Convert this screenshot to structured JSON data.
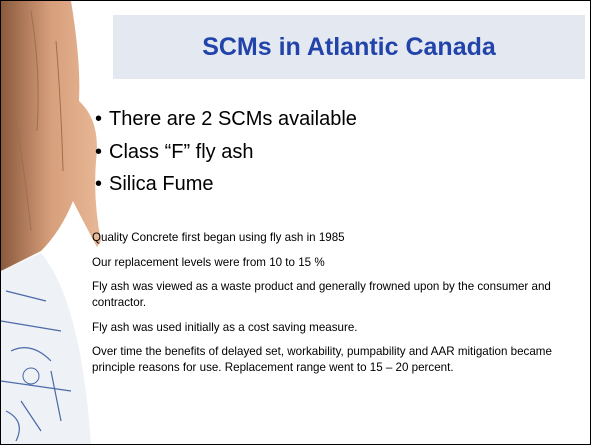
{
  "slide": {
    "title": "SCMs in Atlantic Canada",
    "bullets": [
      "There are 2 SCMs available",
      "Class “F” fly ash",
      "Silica Fume"
    ],
    "paragraphs": [
      "Quality Concrete first began using fly ash in 1985",
      "Our replacement levels were from 10 to 15 %",
      "Fly ash was viewed as a waste product and generally frowned upon by the consumer and contractor.",
      "Fly ash was used initially as a cost saving measure.",
      "Over time the benefits of delayed set, workability, pumpability and AAR mitigation became principle reasons for use. Replacement range went to 15 – 20 percent."
    ]
  }
}
